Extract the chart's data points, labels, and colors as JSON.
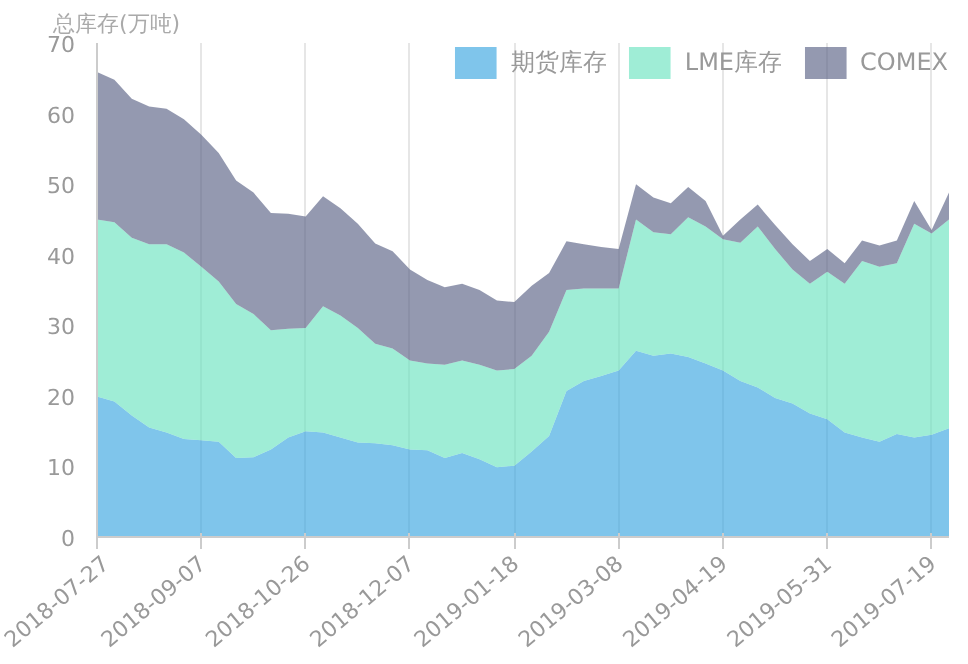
{
  "chart_data": {
    "type": "area",
    "stacked": true,
    "ylabel": "总库存(万吨)",
    "categories": [
      "2018-07-27",
      null,
      null,
      null,
      null,
      null,
      "2018-09-07",
      null,
      null,
      null,
      null,
      null,
      "2018-10-26",
      null,
      null,
      null,
      null,
      null,
      "2018-12-07",
      null,
      null,
      null,
      null,
      null,
      "2019-01-18",
      null,
      null,
      null,
      null,
      null,
      "2019-03-08",
      null,
      null,
      null,
      null,
      null,
      "2019-04-19",
      null,
      null,
      null,
      null,
      null,
      "2019-05-31",
      null,
      null,
      null,
      null,
      null,
      "2019-07-19",
      null
    ],
    "series": [
      {
        "name": "期货库存",
        "color": "#3aa6e0",
        "values": [
          19.9,
          19.2,
          17.2,
          15.5,
          14.8,
          13.9,
          13.7,
          13.5,
          11.2,
          11.3,
          12.4,
          14.1,
          15.0,
          14.8,
          14.1,
          13.4,
          13.3,
          13.0,
          12.4,
          12.3,
          11.2,
          11.9,
          11.0,
          9.9,
          10.1,
          12.1,
          14.3,
          20.7,
          22.1,
          22.8,
          23.6,
          26.4,
          25.7,
          26.0,
          25.5,
          24.6,
          23.6,
          22.1,
          21.2,
          19.7,
          18.9,
          17.5,
          16.7,
          14.8,
          14.1,
          13.5,
          14.6,
          14.1,
          14.5,
          15.4
        ]
      },
      {
        "name": "LME库存",
        "color": "#6be3c0",
        "values": [
          25.1,
          25.4,
          25.2,
          26.0,
          26.7,
          26.4,
          24.6,
          22.7,
          21.8,
          20.3,
          16.9,
          15.4,
          14.6,
          17.9,
          17.3,
          16.2,
          14.1,
          13.7,
          12.6,
          12.3,
          13.2,
          13.1,
          13.4,
          13.7,
          13.7,
          13.6,
          14.8,
          14.3,
          13.1,
          12.4,
          11.6,
          18.6,
          17.5,
          16.9,
          19.8,
          19.4,
          18.6,
          19.6,
          22.8,
          21.1,
          19.0,
          18.4,
          20.9,
          21.1,
          25.0,
          24.8,
          24.2,
          30.3,
          28.5,
          29.6
        ]
      },
      {
        "name": "COMEX",
        "color": "#5a6285",
        "values": [
          20.9,
          20.2,
          19.7,
          19.5,
          19.2,
          18.9,
          18.7,
          18.2,
          17.5,
          17.2,
          16.6,
          16.3,
          15.8,
          15.6,
          15.2,
          14.8,
          14.2,
          13.8,
          12.9,
          11.8,
          11.0,
          10.9,
          10.6,
          9.9,
          9.5,
          9.9,
          8.3,
          6.9,
          6.3,
          5.9,
          5.6,
          5.0,
          4.9,
          4.4,
          4.3,
          3.6,
          0.5,
          3.3,
          3.1,
          3.4,
          3.6,
          3.2,
          3.2,
          2.9,
          2.9,
          3.0,
          3.2,
          3.2,
          0.5,
          3.8
        ]
      }
    ],
    "ylim": [
      0,
      70
    ],
    "yticks": [
      0,
      10,
      20,
      30,
      40,
      50,
      60,
      70
    ],
    "grid": "x",
    "legend": "top right"
  }
}
